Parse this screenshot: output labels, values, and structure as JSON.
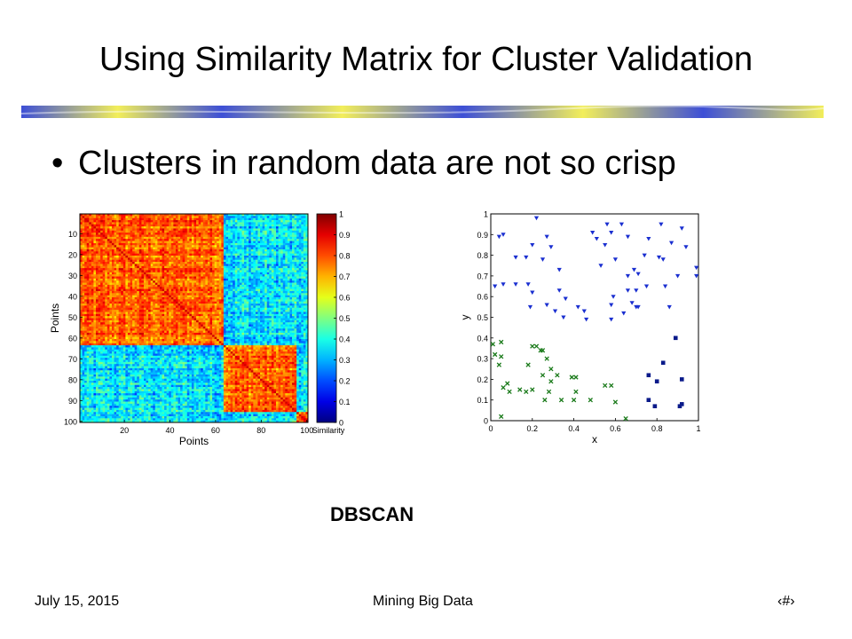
{
  "slide": {
    "title": "Using Similarity Matrix for Cluster Validation",
    "bullet": "Clusters in random data are not so crisp",
    "bullet_marker": "•",
    "caption": "DBSCAN",
    "footer": {
      "date": "July 15, 2015",
      "center": "Mining Big Data",
      "page": "‹#›"
    },
    "colors": {
      "title_bar_blue": "#3d4fd6",
      "title_bar_yellow": "#f2ee5a"
    }
  },
  "chart_data": [
    {
      "type": "heatmap",
      "xlabel": "Points",
      "ylabel": "Points",
      "x_ticks": [
        "20",
        "40",
        "60",
        "80",
        "100"
      ],
      "y_ticks": [
        "10",
        "20",
        "30",
        "40",
        "50",
        "60",
        "70",
        "80",
        "90",
        "100"
      ],
      "colorbar_label": "Similarity",
      "colorbar_ticks": [
        "0",
        "0.1",
        "0.2",
        "0.3",
        "0.4",
        "0.5",
        "0.6",
        "0.7",
        "0.8",
        "0.9",
        "1"
      ],
      "n_points": 100,
      "clusters": [
        [
          1,
          63
        ],
        [
          64,
          95
        ],
        [
          96,
          100
        ]
      ],
      "within_cluster_similarity": [
        0.6,
        0.95
      ],
      "between_cluster_similarity": [
        0.15,
        0.55
      ]
    },
    {
      "type": "scatter",
      "xlabel": "x",
      "ylabel": "y",
      "xlim": [
        0,
        1
      ],
      "ylim": [
        0,
        1
      ],
      "x_ticks": [
        "0",
        "0.2",
        "0.4",
        "0.6",
        "0.8",
        "1"
      ],
      "y_ticks": [
        "0",
        "0.1",
        "0.2",
        "0.3",
        "0.4",
        "0.5",
        "0.6",
        "0.7",
        "0.8",
        "0.9",
        "1"
      ],
      "series": [
        {
          "marker": "triangle-down",
          "color": "#1a2fd0",
          "points": [
            [
              0.22,
              0.98
            ],
            [
              0.56,
              0.95
            ],
            [
              0.63,
              0.95
            ],
            [
              0.82,
              0.95
            ],
            [
              0.92,
              0.93
            ],
            [
              0.06,
              0.9
            ],
            [
              0.49,
              0.91
            ],
            [
              0.58,
              0.91
            ],
            [
              0.04,
              0.89
            ],
            [
              0.27,
              0.89
            ],
            [
              0.51,
              0.88
            ],
            [
              0.66,
              0.89
            ],
            [
              0.76,
              0.88
            ],
            [
              0.2,
              0.85
            ],
            [
              0.29,
              0.84
            ],
            [
              0.55,
              0.85
            ],
            [
              0.87,
              0.86
            ],
            [
              0.94,
              0.84
            ],
            [
              0.74,
              0.8
            ],
            [
              0.12,
              0.79
            ],
            [
              0.17,
              0.79
            ],
            [
              0.25,
              0.78
            ],
            [
              0.6,
              0.78
            ],
            [
              0.81,
              0.79
            ],
            [
              0.83,
              0.78
            ],
            [
              0.33,
              0.73
            ],
            [
              0.53,
              0.75
            ],
            [
              0.69,
              0.73
            ],
            [
              0.99,
              0.74
            ],
            [
              0.9,
              0.7
            ],
            [
              0.99,
              0.7
            ],
            [
              0.71,
              0.71
            ],
            [
              0.66,
              0.7
            ],
            [
              0.06,
              0.66
            ],
            [
              0.02,
              0.65
            ],
            [
              0.12,
              0.66
            ],
            [
              0.18,
              0.66
            ],
            [
              0.84,
              0.65
            ],
            [
              0.33,
              0.63
            ],
            [
              0.66,
              0.63
            ],
            [
              0.7,
              0.63
            ],
            [
              0.75,
              0.65
            ],
            [
              0.2,
              0.62
            ],
            [
              0.59,
              0.6
            ],
            [
              0.36,
              0.59
            ],
            [
              0.58,
              0.56
            ],
            [
              0.68,
              0.57
            ],
            [
              0.7,
              0.55
            ],
            [
              0.27,
              0.56
            ],
            [
              0.31,
              0.53
            ],
            [
              0.19,
              0.55
            ],
            [
              0.42,
              0.55
            ],
            [
              0.71,
              0.55
            ],
            [
              0.64,
              0.52
            ],
            [
              0.86,
              0.55
            ],
            [
              0.45,
              0.53
            ],
            [
              0.58,
              0.49
            ],
            [
              0.46,
              0.49
            ],
            [
              0.35,
              0.5
            ]
          ]
        },
        {
          "marker": "x",
          "color": "#1a7a1a",
          "points": [
            [
              0.05,
              0.38
            ],
            [
              0.01,
              0.37
            ],
            [
              0.2,
              0.36
            ],
            [
              0.22,
              0.36
            ],
            [
              0.24,
              0.34
            ],
            [
              0.25,
              0.34
            ],
            [
              0.02,
              0.32
            ],
            [
              0.05,
              0.31
            ],
            [
              0.27,
              0.3
            ],
            [
              0.29,
              0.25
            ],
            [
              0.04,
              0.27
            ],
            [
              0.18,
              0.27
            ],
            [
              0.25,
              0.22
            ],
            [
              0.32,
              0.22
            ],
            [
              0.29,
              0.19
            ],
            [
              0.39,
              0.21
            ],
            [
              0.41,
              0.21
            ],
            [
              0.08,
              0.18
            ],
            [
              0.06,
              0.16
            ],
            [
              0.14,
              0.15
            ],
            [
              0.2,
              0.15
            ],
            [
              0.28,
              0.14
            ],
            [
              0.41,
              0.14
            ],
            [
              0.55,
              0.17
            ],
            [
              0.58,
              0.17
            ],
            [
              0.09,
              0.14
            ],
            [
              0.17,
              0.14
            ],
            [
              0.34,
              0.1
            ],
            [
              0.48,
              0.1
            ],
            [
              0.26,
              0.1
            ],
            [
              0.6,
              0.09
            ],
            [
              0.4,
              0.1
            ],
            [
              0.65,
              0.01
            ],
            [
              0.05,
              0.02
            ]
          ]
        },
        {
          "marker": "square",
          "color": "#0a1a8a",
          "points": [
            [
              0.89,
              0.4
            ],
            [
              0.83,
              0.28
            ],
            [
              0.76,
              0.22
            ],
            [
              0.8,
              0.19
            ],
            [
              0.92,
              0.2
            ],
            [
              0.76,
              0.1
            ],
            [
              0.79,
              0.07
            ],
            [
              0.91,
              0.07
            ],
            [
              0.92,
              0.08
            ]
          ]
        }
      ]
    }
  ]
}
